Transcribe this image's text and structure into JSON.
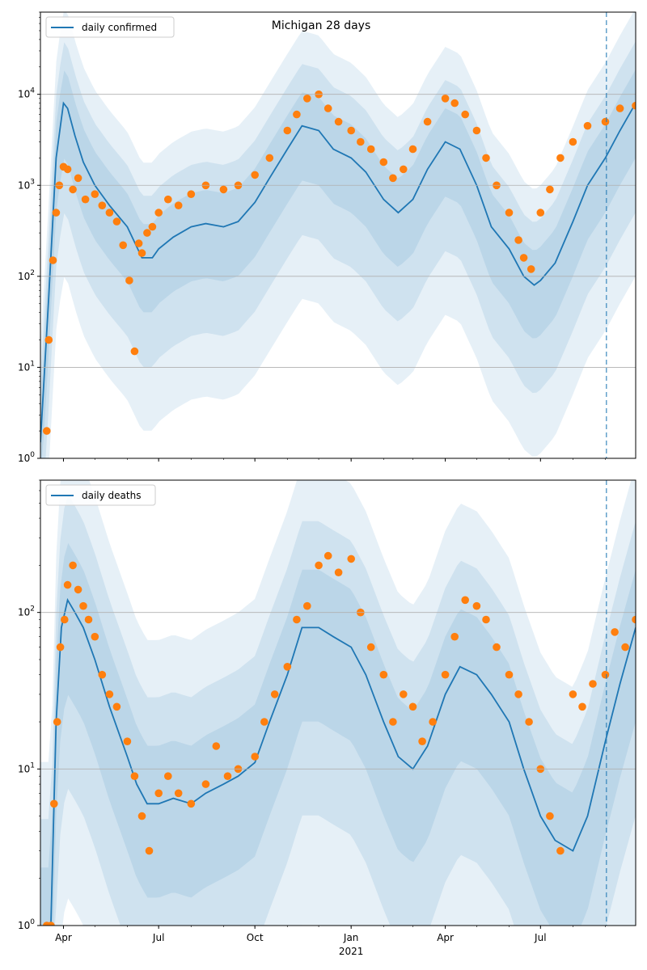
{
  "chart_data": [
    {
      "type": "line",
      "title": "Michigan 28 days",
      "scale": "log",
      "ylim": [
        1,
        80000
      ],
      "yticks": [
        {
          "value": 1,
          "base": "10",
          "exp": "0"
        },
        {
          "value": 10,
          "base": "10",
          "exp": "1"
        },
        {
          "value": 100,
          "base": "10",
          "exp": "2"
        },
        {
          "value": 1000,
          "base": "10",
          "exp": "3"
        },
        {
          "value": 10000,
          "base": "10",
          "exp": "4"
        }
      ],
      "xlim": [
        "2020-03-10",
        "2021-09-30"
      ],
      "xticks": [
        {
          "date": "2020-04-01",
          "label": "Apr"
        },
        {
          "date": "2020-07-01",
          "label": "Jul"
        },
        {
          "date": "2020-10-01",
          "label": "Oct"
        },
        {
          "date": "2021-01-01",
          "label": "Jan",
          "sublabel": "2021"
        },
        {
          "date": "2021-04-01",
          "label": "Apr"
        },
        {
          "date": "2021-07-01",
          "label": "Jul"
        }
      ],
      "grid": "horizontal",
      "legend": {
        "position": "upper-left",
        "label": "daily confirmed"
      },
      "forecast_start": "2021-09-02",
      "colors": {
        "line": "#1f77b4",
        "points": "#ff7f0e",
        "band": "#1f77b4",
        "grid": "#b0b0b0"
      },
      "series": [
        {
          "name": "daily confirmed",
          "x": [
            "2020-03-10",
            "2020-03-18",
            "2020-03-25",
            "2020-04-01",
            "2020-04-05",
            "2020-04-12",
            "2020-04-20",
            "2020-05-01",
            "2020-05-15",
            "2020-06-01",
            "2020-06-15",
            "2020-06-25",
            "2020-07-01",
            "2020-07-15",
            "2020-08-01",
            "2020-08-15",
            "2020-09-01",
            "2020-09-15",
            "2020-10-01",
            "2020-10-15",
            "2020-11-01",
            "2020-11-15",
            "2020-12-01",
            "2020-12-15",
            "2021-01-01",
            "2021-01-15",
            "2021-02-01",
            "2021-02-15",
            "2021-03-01",
            "2021-03-15",
            "2021-04-01",
            "2021-04-15",
            "2021-05-01",
            "2021-05-15",
            "2021-06-01",
            "2021-06-15",
            "2021-06-25",
            "2021-07-01",
            "2021-07-15",
            "2021-08-01",
            "2021-08-15",
            "2021-09-01",
            "2021-09-15",
            "2021-09-30"
          ],
          "y": [
            1.5,
            60,
            2000,
            8000,
            7000,
            3500,
            1800,
            1000,
            600,
            350,
            160,
            160,
            200,
            270,
            350,
            380,
            350,
            400,
            650,
            1200,
            2500,
            4500,
            4000,
            2500,
            2000,
            1400,
            700,
            500,
            700,
            1500,
            3000,
            2500,
            1000,
            350,
            200,
            100,
            80,
            90,
            140,
            400,
            1000,
            2000,
            4000,
            8000
          ]
        },
        {
          "name": "observed",
          "x": [
            "2020-03-16",
            "2020-03-18",
            "2020-03-22",
            "2020-03-25",
            "2020-03-28",
            "2020-04-01",
            "2020-04-05",
            "2020-04-10",
            "2020-04-15",
            "2020-04-22",
            "2020-05-01",
            "2020-05-08",
            "2020-05-15",
            "2020-05-22",
            "2020-05-28",
            "2020-06-03",
            "2020-06-08",
            "2020-06-12",
            "2020-06-15",
            "2020-06-20",
            "2020-06-25",
            "2020-07-01",
            "2020-07-10",
            "2020-07-20",
            "2020-08-01",
            "2020-08-15",
            "2020-09-01",
            "2020-09-15",
            "2020-10-01",
            "2020-10-15",
            "2020-11-01",
            "2020-11-10",
            "2020-11-20",
            "2020-12-01",
            "2020-12-10",
            "2020-12-20",
            "2021-01-01",
            "2021-01-10",
            "2021-01-20",
            "2021-02-01",
            "2021-02-10",
            "2021-02-20",
            "2021-03-01",
            "2021-03-15",
            "2021-04-01",
            "2021-04-10",
            "2021-04-20",
            "2021-05-01",
            "2021-05-10",
            "2021-05-20",
            "2021-06-01",
            "2021-06-10",
            "2021-06-15",
            "2021-06-22",
            "2021-07-01",
            "2021-07-10",
            "2021-07-20",
            "2021-08-01",
            "2021-08-15",
            "2021-09-01",
            "2021-09-15",
            "2021-09-30"
          ],
          "y": [
            2,
            20,
            150,
            500,
            1000,
            1600,
            1500,
            900,
            1200,
            700,
            800,
            600,
            500,
            400,
            220,
            90,
            15,
            230,
            180,
            300,
            350,
            500,
            700,
            600,
            800,
            1000,
            900,
            1000,
            1300,
            2000,
            4000,
            6000,
            9000,
            10000,
            7000,
            5000,
            4000,
            3000,
            2500,
            1800,
            1200,
            1500,
            2500,
            5000,
            9000,
            8000,
            6000,
            4000,
            2000,
            1000,
            500,
            250,
            160,
            120,
            500,
            900,
            2000,
            3000,
            4500,
            5000,
            7000,
            7500
          ]
        }
      ]
    },
    {
      "type": "line",
      "title": "",
      "scale": "log",
      "ylim": [
        1,
        700
      ],
      "yticks": [
        {
          "value": 1,
          "base": "10",
          "exp": "0"
        },
        {
          "value": 10,
          "base": "10",
          "exp": "1"
        },
        {
          "value": 100,
          "base": "10",
          "exp": "2"
        }
      ],
      "xlim": [
        "2020-03-10",
        "2021-09-30"
      ],
      "xticks": [
        {
          "date": "2020-04-01",
          "label": "Apr"
        },
        {
          "date": "2020-07-01",
          "label": "Jul"
        },
        {
          "date": "2020-10-01",
          "label": "Oct"
        },
        {
          "date": "2021-01-01",
          "label": "Jan",
          "sublabel": "2021"
        },
        {
          "date": "2021-04-01",
          "label": "Apr"
        },
        {
          "date": "2021-07-01",
          "label": "Jul"
        }
      ],
      "grid": "horizontal",
      "legend": {
        "position": "upper-left",
        "label": "daily deaths"
      },
      "forecast_start": "2021-09-02",
      "colors": {
        "line": "#1f77b4",
        "points": "#ff7f0e",
        "band": "#1f77b4",
        "grid": "#b0b0b0"
      },
      "series": [
        {
          "name": "daily deaths",
          "x": [
            "2020-03-16",
            "2020-03-20",
            "2020-03-25",
            "2020-03-30",
            "2020-04-05",
            "2020-04-12",
            "2020-04-20",
            "2020-05-01",
            "2020-05-15",
            "2020-06-01",
            "2020-06-10",
            "2020-06-20",
            "2020-07-01",
            "2020-07-15",
            "2020-08-01",
            "2020-08-15",
            "2020-09-01",
            "2020-09-15",
            "2020-10-01",
            "2020-10-15",
            "2020-11-01",
            "2020-11-15",
            "2020-12-01",
            "2020-12-15",
            "2021-01-01",
            "2021-01-15",
            "2021-02-01",
            "2021-02-15",
            "2021-03-01",
            "2021-03-15",
            "2021-04-01",
            "2021-04-15",
            "2021-05-01",
            "2021-05-15",
            "2021-06-01",
            "2021-06-15",
            "2021-07-01",
            "2021-07-15",
            "2021-08-01",
            "2021-08-15",
            "2021-09-01",
            "2021-09-15",
            "2021-09-30"
          ],
          "y": [
            1,
            1,
            20,
            80,
            120,
            100,
            80,
            50,
            25,
            12,
            8,
            6,
            6,
            6.5,
            6,
            7,
            8,
            9,
            11,
            20,
            40,
            80,
            80,
            70,
            60,
            40,
            20,
            12,
            10,
            14,
            30,
            45,
            40,
            30,
            20,
            10,
            5,
            3.5,
            3,
            5,
            15,
            35,
            80
          ]
        },
        {
          "name": "observed",
          "x": [
            "2020-03-16",
            "2020-03-20",
            "2020-03-23",
            "2020-03-26",
            "2020-03-29",
            "2020-04-02",
            "2020-04-05",
            "2020-04-10",
            "2020-04-15",
            "2020-04-20",
            "2020-04-25",
            "2020-05-01",
            "2020-05-08",
            "2020-05-15",
            "2020-05-22",
            "2020-06-01",
            "2020-06-08",
            "2020-06-15",
            "2020-06-22",
            "2020-07-01",
            "2020-07-10",
            "2020-07-20",
            "2020-08-01",
            "2020-08-15",
            "2020-08-25",
            "2020-09-05",
            "2020-09-15",
            "2020-10-01",
            "2020-10-10",
            "2020-10-20",
            "2020-11-01",
            "2020-11-10",
            "2020-11-20",
            "2020-12-01",
            "2020-12-10",
            "2020-12-20",
            "2021-01-01",
            "2021-01-10",
            "2021-01-20",
            "2021-02-01",
            "2021-02-10",
            "2021-02-20",
            "2021-03-01",
            "2021-03-10",
            "2021-03-20",
            "2021-04-01",
            "2021-04-10",
            "2021-04-20",
            "2021-05-01",
            "2021-05-10",
            "2021-05-20",
            "2021-06-01",
            "2021-06-10",
            "2021-06-20",
            "2021-07-01",
            "2021-07-10",
            "2021-07-20",
            "2021-08-01",
            "2021-08-10",
            "2021-08-20",
            "2021-09-01",
            "2021-09-10",
            "2021-09-20",
            "2021-09-30"
          ],
          "y": [
            1,
            1,
            6,
            20,
            60,
            90,
            150,
            200,
            140,
            110,
            90,
            70,
            40,
            30,
            25,
            15,
            9,
            5,
            3,
            7,
            9,
            7,
            6,
            8,
            14,
            9,
            10,
            12,
            20,
            30,
            45,
            90,
            110,
            200,
            230,
            180,
            220,
            100,
            60,
            40,
            20,
            30,
            25,
            15,
            20,
            40,
            70,
            120,
            110,
            90,
            60,
            40,
            30,
            20,
            10,
            5,
            3,
            30,
            25,
            35,
            40,
            75,
            60,
            90
          ]
        }
      ]
    }
  ]
}
